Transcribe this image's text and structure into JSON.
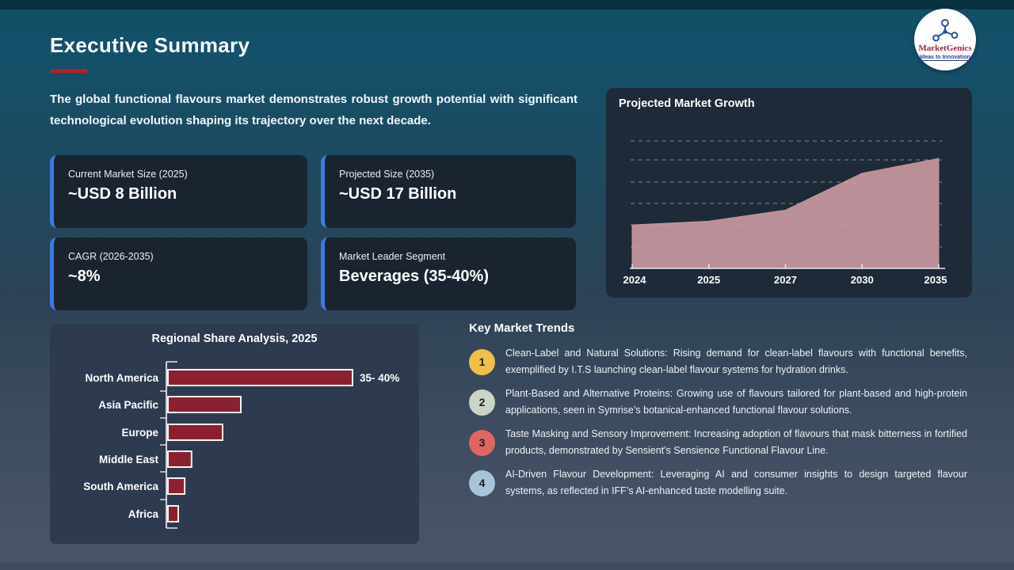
{
  "slide": {
    "title": "Executive Summary",
    "intro": "The global functional flavours market demonstrates robust growth potential with significant technological evolution shaping its trajectory over the next decade."
  },
  "logo": {
    "name": "MarketGenics",
    "tagline": "Ideas to Innovation"
  },
  "stats": {
    "cards": [
      {
        "label": "Current Market Size (2025)",
        "value": "~USD 8 Billion"
      },
      {
        "label": "Projected Size (2035)",
        "value": "~USD 17 Billion"
      },
      {
        "label": "CAGR (2026-2035)",
        "value": "~8%"
      },
      {
        "label": "Market Leader Segment",
        "value": "Beverages (35-40%)"
      }
    ]
  },
  "chart_data": [
    {
      "type": "area",
      "title": "Projected Market Growth",
      "x": [
        "2024",
        "2025",
        "2027",
        "2030",
        "2035"
      ],
      "values": [
        8,
        8.5,
        10,
        15,
        17
      ],
      "unit": "USD Billion (estimated from area heights)",
      "ylim": [
        0,
        20
      ],
      "grid": "horizontal dashed",
      "legend": "none",
      "fill_color": "#c2949c"
    },
    {
      "type": "bar",
      "title": "Regional Share Analysis, 2025",
      "orientation": "horizontal",
      "categories": [
        "North America",
        "Asia Pacific",
        "Europe",
        "Middle East",
        "South America",
        "Africa"
      ],
      "values": [
        37.5,
        14.8,
        11.1,
        4.8,
        3.4,
        2.1
      ],
      "value_labels": [
        "35- 40%",
        "",
        "",
        "",
        "",
        ""
      ],
      "unit": "% market share (estimated from bar lengths; only North America labeled)",
      "legend": "none",
      "bar_color": "#8c2030",
      "bar_border_color": "#f5f5f5"
    }
  ],
  "trends": {
    "title": "Key Market Trends",
    "items": [
      {
        "num": "1",
        "badge_color": "#f0c04a",
        "text": "Clean-Label and Natural Solutions: Rising demand for clean-label flavours with functional benefits, exemplified by I.T.S launching clean-label flavour systems for hydration drinks."
      },
      {
        "num": "2",
        "badge_color": "#ccd4c7",
        "text": "Plant-Based and Alternative Proteins: Growing use of flavours tailored for plant-based and high-protein applications, seen in Symrise’s botanical-enhanced functional flavour solutions."
      },
      {
        "num": "3",
        "badge_color": "#e06565",
        "text": "Taste Masking and Sensory Improvement: Increasing adoption of flavours that mask bitterness in fortified products, demonstrated by Sensient’s Sensience Functional Flavour Line."
      },
      {
        "num": "4",
        "badge_color": "#a8c4d8",
        "text": "AI-Driven Flavour Development: Leveraging AI and consumer insights to design targeted flavour systems, as reflected in IFF’s AI-enhanced taste modelling suite."
      }
    ]
  },
  "colors": {
    "accent_red": "#b32028",
    "card_accent_blue": "#3d7be1",
    "card_bg": "#1a2431",
    "growth_panel_bg": "#1e2a38",
    "bar_panel_bg": "#2e3a4f",
    "top_strip": "#0a3140",
    "bottom_strip": "#3e4a5e"
  }
}
